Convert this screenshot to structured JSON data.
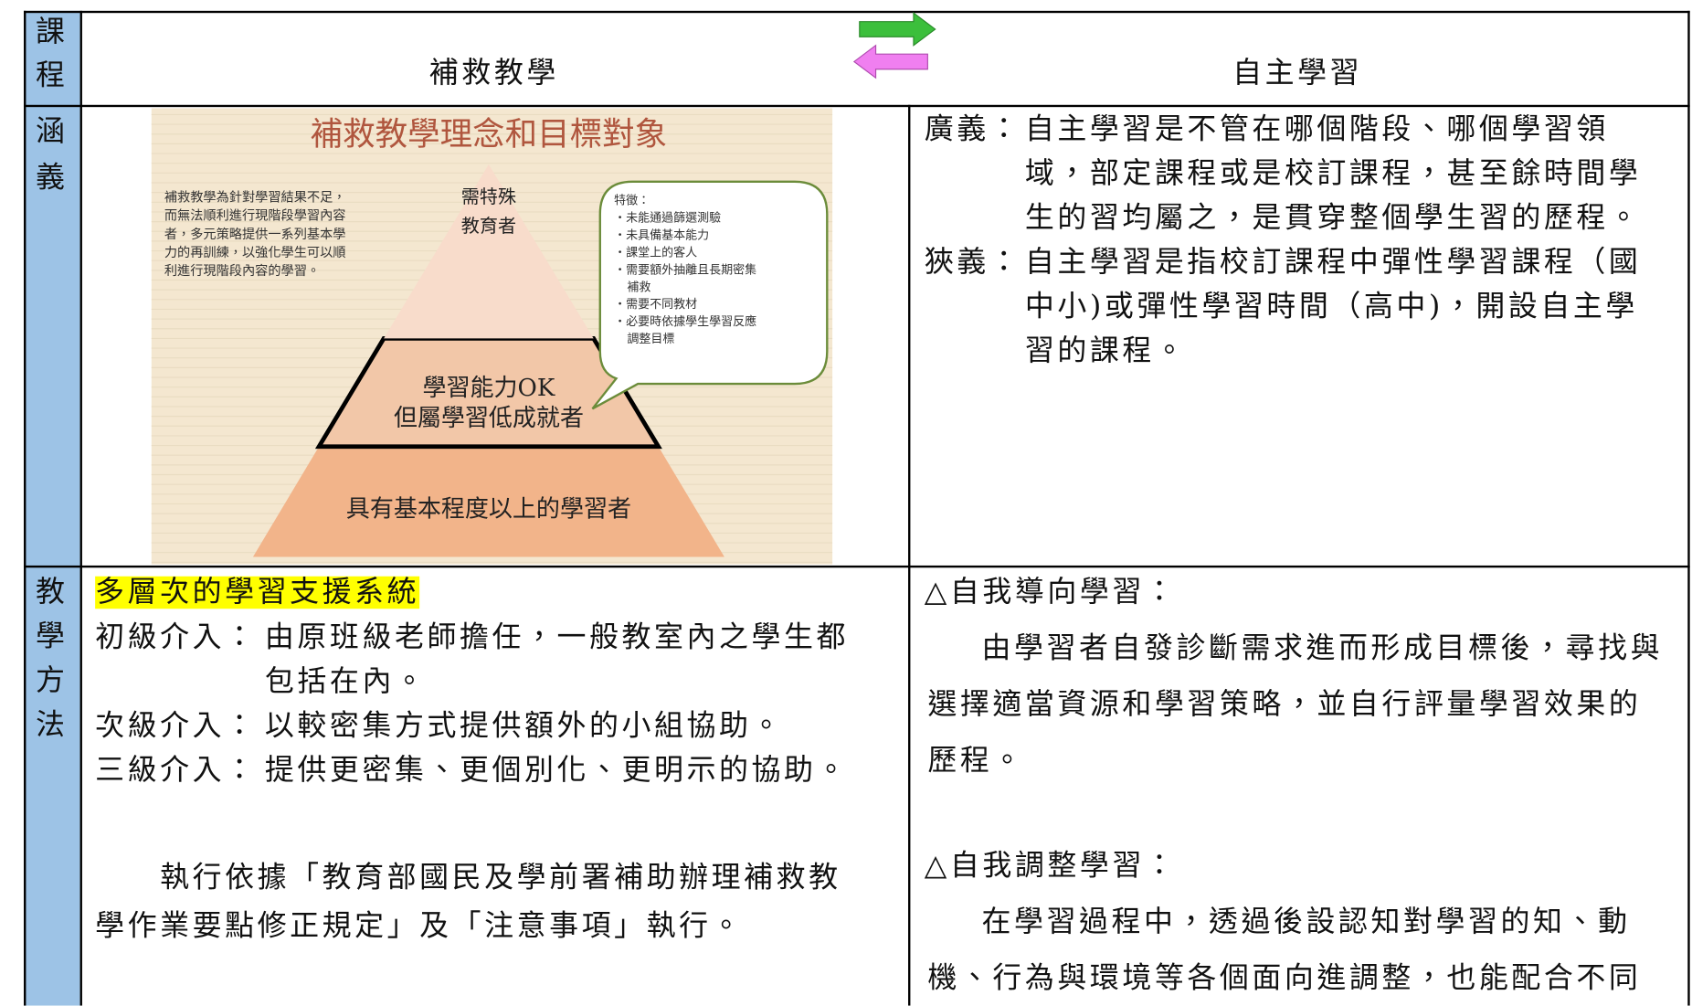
{
  "header": {
    "label": [
      "課",
      "程"
    ],
    "left_title": "補救教學",
    "right_title": "自主學習"
  },
  "rows": [
    {
      "label": [
        "涵",
        "義"
      ],
      "diagram": {
        "title": "補救教學理念和目標對象",
        "description": [
          "補救教學為針對學習結果不足，",
          "而無法順利進行現階段學習內容",
          "者，多元策略提供一系列基本學",
          "力的再訓練，以強化學生可以順",
          "利進行現階段內容的學習。"
        ],
        "bubble_title": "特徵：",
        "bubble_items": [
          "‧未能通過篩選測驗",
          "‧未具備基本能力",
          "‧課堂上的客人",
          "‧需要額外抽離且長期密集",
          "補救",
          "‧需要不同教材",
          "‧必要時依據學生學習反應",
          "調整目標"
        ],
        "levels": [
          [
            "需特殊",
            "教育者"
          ],
          [
            "學習能力OK",
            "但屬學習低成就者"
          ],
          [
            "具有基本程度以上的學習者"
          ]
        ]
      },
      "right": [
        {
          "term": "廣義：",
          "lines": [
            "自主學習是不管在哪個階段、哪個學習領",
            "域，部定課程或是校訂課程，甚至餘時間學",
            "生的習均屬之，是貫穿整個學生習的歷程。"
          ]
        },
        {
          "term": "狹義：",
          "lines": [
            "自主學習是指校訂課程中彈性學習課程（國",
            "中小)或彈性學習時間（高中)，開設自主學",
            "習的課程。"
          ]
        }
      ]
    },
    {
      "label": [
        "教",
        "學",
        "方",
        "法"
      ],
      "left": {
        "heading": "多層次的學習支援系統",
        "levels": [
          {
            "term": "初級介入：",
            "lines": [
              "由原班級老師擔任，一般教室內之學生都",
              "包括在內。"
            ]
          },
          {
            "term": "次級介入：",
            "lines": [
              "以較密集方式提供額外的小組協助。"
            ]
          },
          {
            "term": "三級介入：",
            "lines": [
              "提供更密集、更個別化、更明示的協助。"
            ]
          }
        ],
        "note": [
          "執行依據「教育部國民及學前署補助辦理補救教",
          "學作業要點修正規定」及「注意事項」執行。"
        ]
      },
      "right": [
        {
          "heading": "△自我導向學習：",
          "lines": [
            "由學習者自發診斷需求進而形成目標後，尋找與",
            "選擇適當資源和學習策略，並自行評量學習效果的",
            "歷程。"
          ]
        },
        {
          "heading": "△自我調整學習：",
          "lines": [
            "在學習過程中，透過後設認知對學習的知、動",
            "機、行為與環境等各個面向進調整，也能配合不同"
          ]
        }
      ]
    }
  ]
}
